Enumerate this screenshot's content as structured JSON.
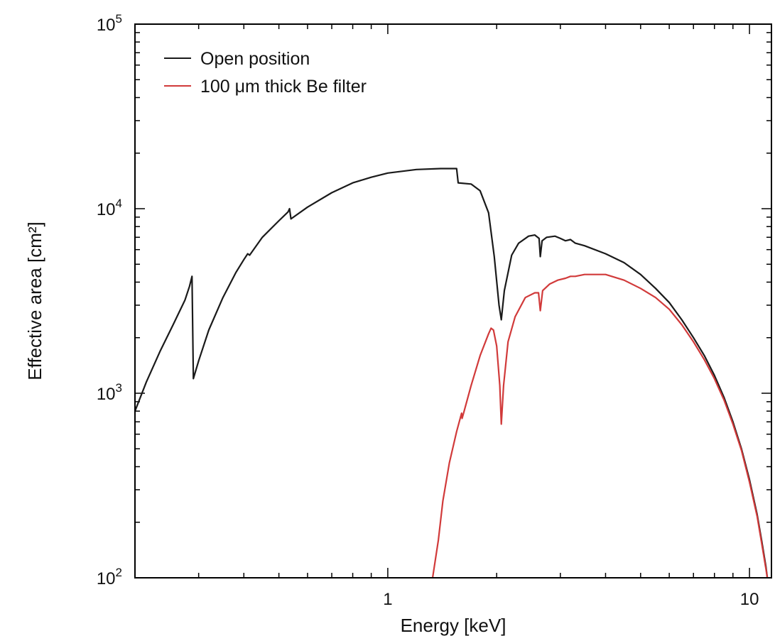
{
  "chart_data": {
    "type": "line",
    "title": "",
    "xlabel": "Energy [keV]",
    "ylabel": "Effective area [cm²]",
    "xscale": "log",
    "yscale": "log",
    "xlim": [
      0.2,
      11.5
    ],
    "ylim": [
      100,
      100000
    ],
    "grid": false,
    "legend_position": "top-left",
    "x_ticks": [
      {
        "value": 1,
        "label": "1"
      },
      {
        "value": 10,
        "label": "10"
      }
    ],
    "y_ticks": [
      {
        "value": 100,
        "base": "10",
        "exp": "2"
      },
      {
        "value": 1000,
        "base": "10",
        "exp": "3"
      },
      {
        "value": 10000,
        "base": "10",
        "exp": "4"
      },
      {
        "value": 100000,
        "base": "10",
        "exp": "5"
      }
    ],
    "series": [
      {
        "name": "Open position",
        "color": "#1a1a1a",
        "points": [
          [
            0.2,
            800
          ],
          [
            0.215,
            1150
          ],
          [
            0.235,
            1700
          ],
          [
            0.255,
            2350
          ],
          [
            0.275,
            3200
          ],
          [
            0.283,
            3800
          ],
          [
            0.2875,
            4300
          ],
          [
            0.29,
            1200
          ],
          [
            0.3,
            1500
          ],
          [
            0.32,
            2200
          ],
          [
            0.35,
            3300
          ],
          [
            0.38,
            4500
          ],
          [
            0.4,
            5300
          ],
          [
            0.41,
            5700
          ],
          [
            0.415,
            5600
          ],
          [
            0.45,
            7000
          ],
          [
            0.5,
            8600
          ],
          [
            0.53,
            9600
          ],
          [
            0.535,
            10000
          ],
          [
            0.54,
            8800
          ],
          [
            0.6,
            10200
          ],
          [
            0.7,
            12200
          ],
          [
            0.8,
            13800
          ],
          [
            0.9,
            14800
          ],
          [
            1.0,
            15600
          ],
          [
            1.2,
            16300
          ],
          [
            1.4,
            16500
          ],
          [
            1.55,
            16500
          ],
          [
            1.565,
            13800
          ],
          [
            1.7,
            13600
          ],
          [
            1.8,
            12500
          ],
          [
            1.9,
            9500
          ],
          [
            1.97,
            5500
          ],
          [
            2.03,
            3000
          ],
          [
            2.06,
            2500
          ],
          [
            2.1,
            3600
          ],
          [
            2.2,
            5600
          ],
          [
            2.3,
            6500
          ],
          [
            2.45,
            7100
          ],
          [
            2.55,
            7200
          ],
          [
            2.62,
            6900
          ],
          [
            2.64,
            5500
          ],
          [
            2.67,
            6700
          ],
          [
            2.75,
            7000
          ],
          [
            2.9,
            7100
          ],
          [
            3.0,
            6900
          ],
          [
            3.1,
            6700
          ],
          [
            3.2,
            6800
          ],
          [
            3.3,
            6500
          ],
          [
            3.5,
            6300
          ],
          [
            4.0,
            5700
          ],
          [
            4.5,
            5100
          ],
          [
            5.0,
            4400
          ],
          [
            5.5,
            3700
          ],
          [
            6.0,
            3100
          ],
          [
            6.5,
            2500
          ],
          [
            7.0,
            2000
          ],
          [
            7.5,
            1600
          ],
          [
            8.0,
            1250
          ],
          [
            8.5,
            950
          ],
          [
            9.0,
            700
          ],
          [
            9.5,
            500
          ],
          [
            10.0,
            340
          ],
          [
            10.5,
            220
          ],
          [
            10.8,
            160
          ],
          [
            11.1,
            115
          ],
          [
            11.2,
            100
          ]
        ]
      },
      {
        "name": "100 μm thick Be filter",
        "color": "#d13a3a",
        "points": [
          [
            1.33,
            100
          ],
          [
            1.38,
            160
          ],
          [
            1.42,
            260
          ],
          [
            1.48,
            420
          ],
          [
            1.55,
            620
          ],
          [
            1.6,
            780
          ],
          [
            1.605,
            730
          ],
          [
            1.62,
            780
          ],
          [
            1.7,
            1100
          ],
          [
            1.8,
            1600
          ],
          [
            1.9,
            2100
          ],
          [
            1.93,
            2250
          ],
          [
            1.96,
            2200
          ],
          [
            2.0,
            1800
          ],
          [
            2.04,
            1100
          ],
          [
            2.06,
            680
          ],
          [
            2.09,
            1100
          ],
          [
            2.15,
            1900
          ],
          [
            2.25,
            2600
          ],
          [
            2.4,
            3300
          ],
          [
            2.55,
            3500
          ],
          [
            2.61,
            3500
          ],
          [
            2.64,
            2800
          ],
          [
            2.68,
            3600
          ],
          [
            2.8,
            3900
          ],
          [
            2.95,
            4100
          ],
          [
            3.1,
            4200
          ],
          [
            3.2,
            4300
          ],
          [
            3.3,
            4300
          ],
          [
            3.5,
            4400
          ],
          [
            4.0,
            4400
          ],
          [
            4.5,
            4100
          ],
          [
            5.0,
            3700
          ],
          [
            5.5,
            3300
          ],
          [
            6.0,
            2850
          ],
          [
            6.5,
            2350
          ],
          [
            7.0,
            1900
          ],
          [
            7.5,
            1520
          ],
          [
            8.0,
            1200
          ],
          [
            8.5,
            920
          ],
          [
            9.0,
            680
          ],
          [
            9.5,
            490
          ],
          [
            10.0,
            330
          ],
          [
            10.5,
            215
          ],
          [
            10.8,
            155
          ],
          [
            11.1,
            112
          ],
          [
            11.2,
            100
          ]
        ]
      }
    ]
  }
}
